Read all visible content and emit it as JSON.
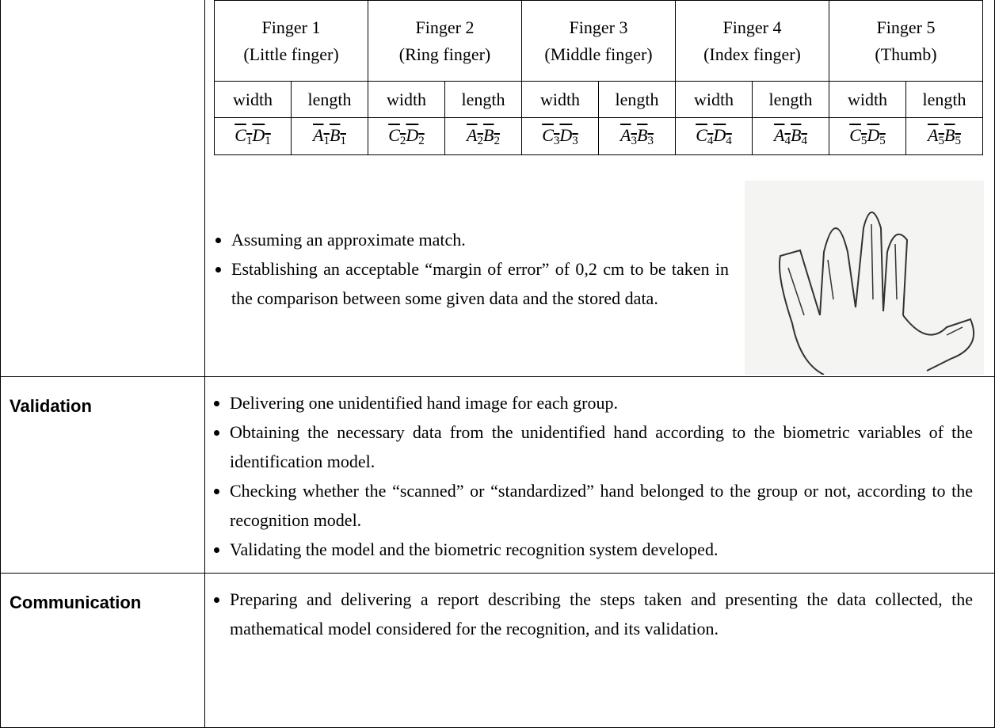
{
  "finger_table": {
    "fingers": [
      {
        "name": "Finger 1",
        "detail": "(Little finger)",
        "measures": [
          "width",
          "length"
        ],
        "segments": [
          [
            [
              "C",
              "1"
            ],
            [
              "D",
              "1"
            ]
          ],
          [
            [
              "A",
              "1"
            ],
            [
              "B",
              "1"
            ]
          ]
        ]
      },
      {
        "name": "Finger 2",
        "detail": "(Ring finger)",
        "measures": [
          "width",
          "length"
        ],
        "segments": [
          [
            [
              "C",
              "2"
            ],
            [
              "D",
              "2"
            ]
          ],
          [
            [
              "A",
              "2"
            ],
            [
              "B",
              "2"
            ]
          ]
        ]
      },
      {
        "name": "Finger 3",
        "detail": "(Middle finger)",
        "measures": [
          "width",
          "length"
        ],
        "segments": [
          [
            [
              "C",
              "3"
            ],
            [
              "D",
              "3"
            ]
          ],
          [
            [
              "A",
              "3"
            ],
            [
              "B",
              "3"
            ]
          ]
        ]
      },
      {
        "name": "Finger 4",
        "detail": "(Index finger)",
        "measures": [
          "width",
          "length"
        ],
        "segments": [
          [
            [
              "C",
              "4"
            ],
            [
              "D",
              "4"
            ]
          ],
          [
            [
              "A",
              "4"
            ],
            [
              "B",
              "4"
            ]
          ]
        ]
      },
      {
        "name": "Finger 5",
        "detail": "(Thumb)",
        "measures": [
          "width",
          "length"
        ],
        "segments": [
          [
            [
              "C",
              "5"
            ],
            [
              "D",
              "5"
            ]
          ],
          [
            [
              "A",
              "5"
            ],
            [
              "B",
              "5"
            ]
          ]
        ]
      }
    ]
  },
  "notes": [
    "Assuming an approximate match.",
    "Establishing an acceptable “margin of error” of 0,2 cm to be taken in the comparison between some given data and the stored data."
  ],
  "rows": [
    {
      "label": "Validation",
      "items": [
        "Delivering one unidentified hand image for each group.",
        "Obtaining the necessary data from the unidentified hand according to the biometric variables of the identification model.",
        "Checking whether the “scanned” or “standardized” hand belonged to the group or not, according to the recognition model.",
        "Validating the model and the biometric recognition system developed."
      ]
    },
    {
      "label": "Communication",
      "items": [
        "Preparing and delivering a report describing the steps taken and presenting the data collected, the mathematical model considered for the recognition, and its validation."
      ]
    }
  ]
}
